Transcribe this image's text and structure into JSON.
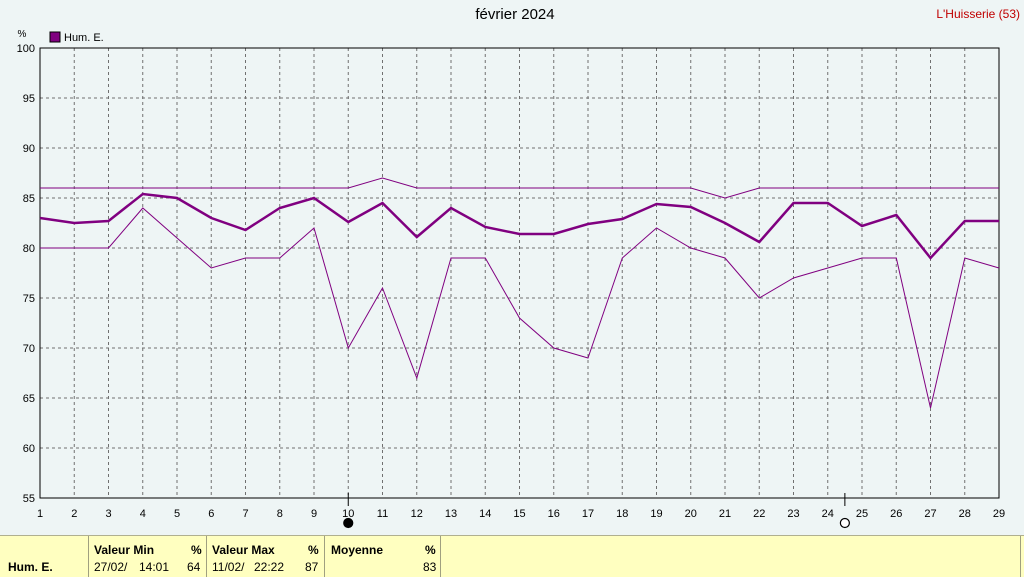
{
  "header": {
    "title": "février 2024",
    "station": "L'Huisserie (53)"
  },
  "chart_data": {
    "type": "line",
    "y_unit": "%",
    "legend": [
      "Hum. E."
    ],
    "ylim": [
      55,
      100
    ],
    "yticks": [
      55,
      60,
      65,
      70,
      75,
      80,
      85,
      90,
      95,
      100
    ],
    "x": [
      1,
      2,
      3,
      4,
      5,
      6,
      7,
      8,
      9,
      10,
      11,
      12,
      13,
      14,
      15,
      16,
      17,
      18,
      19,
      20,
      21,
      22,
      23,
      24,
      25,
      26,
      27,
      28,
      29
    ],
    "xlim": [
      1,
      29
    ],
    "grid": true,
    "legend_position": "top-left",
    "series": [
      {
        "role": "max",
        "color": "#800080",
        "values": [
          86,
          86,
          86,
          86,
          86,
          86,
          86,
          86,
          86,
          86,
          87,
          86,
          86,
          86,
          86,
          86,
          86,
          86,
          86,
          86,
          85,
          86,
          86,
          86,
          86,
          86,
          86,
          86,
          86
        ]
      },
      {
        "role": "mean",
        "color": "#800080",
        "values": [
          83,
          82.5,
          82.7,
          85.4,
          85,
          83,
          81.8,
          84,
          85,
          82.6,
          84.5,
          81.1,
          84,
          82.1,
          81.4,
          81.4,
          82.4,
          82.9,
          84.4,
          84.1,
          82.5,
          80.6,
          84.5,
          84.5,
          82.2,
          83.3,
          79,
          82.7,
          82.7
        ]
      },
      {
        "role": "min",
        "color": "#800080",
        "values": [
          80,
          80,
          80,
          84,
          81,
          78,
          79,
          79,
          82,
          70,
          76,
          67,
          79,
          79,
          73,
          70,
          69,
          79,
          82,
          80,
          79,
          75,
          77,
          78,
          79,
          79,
          64,
          79,
          78
        ]
      }
    ],
    "moon_phases": [
      {
        "x": 10,
        "phase": "new"
      },
      {
        "x": 24.5,
        "phase": "full"
      }
    ]
  },
  "summary": {
    "row_label": "Hum. E.",
    "min": {
      "header": "Valeur Min",
      "unit": "%",
      "date": "27/02/",
      "time": "14:01",
      "value": "64"
    },
    "max": {
      "header": "Valeur Max",
      "unit": "%",
      "date": "11/02/",
      "time": "22:22",
      "value": "87"
    },
    "avg": {
      "header": "Moyenne",
      "unit": "%",
      "value": "83"
    }
  }
}
